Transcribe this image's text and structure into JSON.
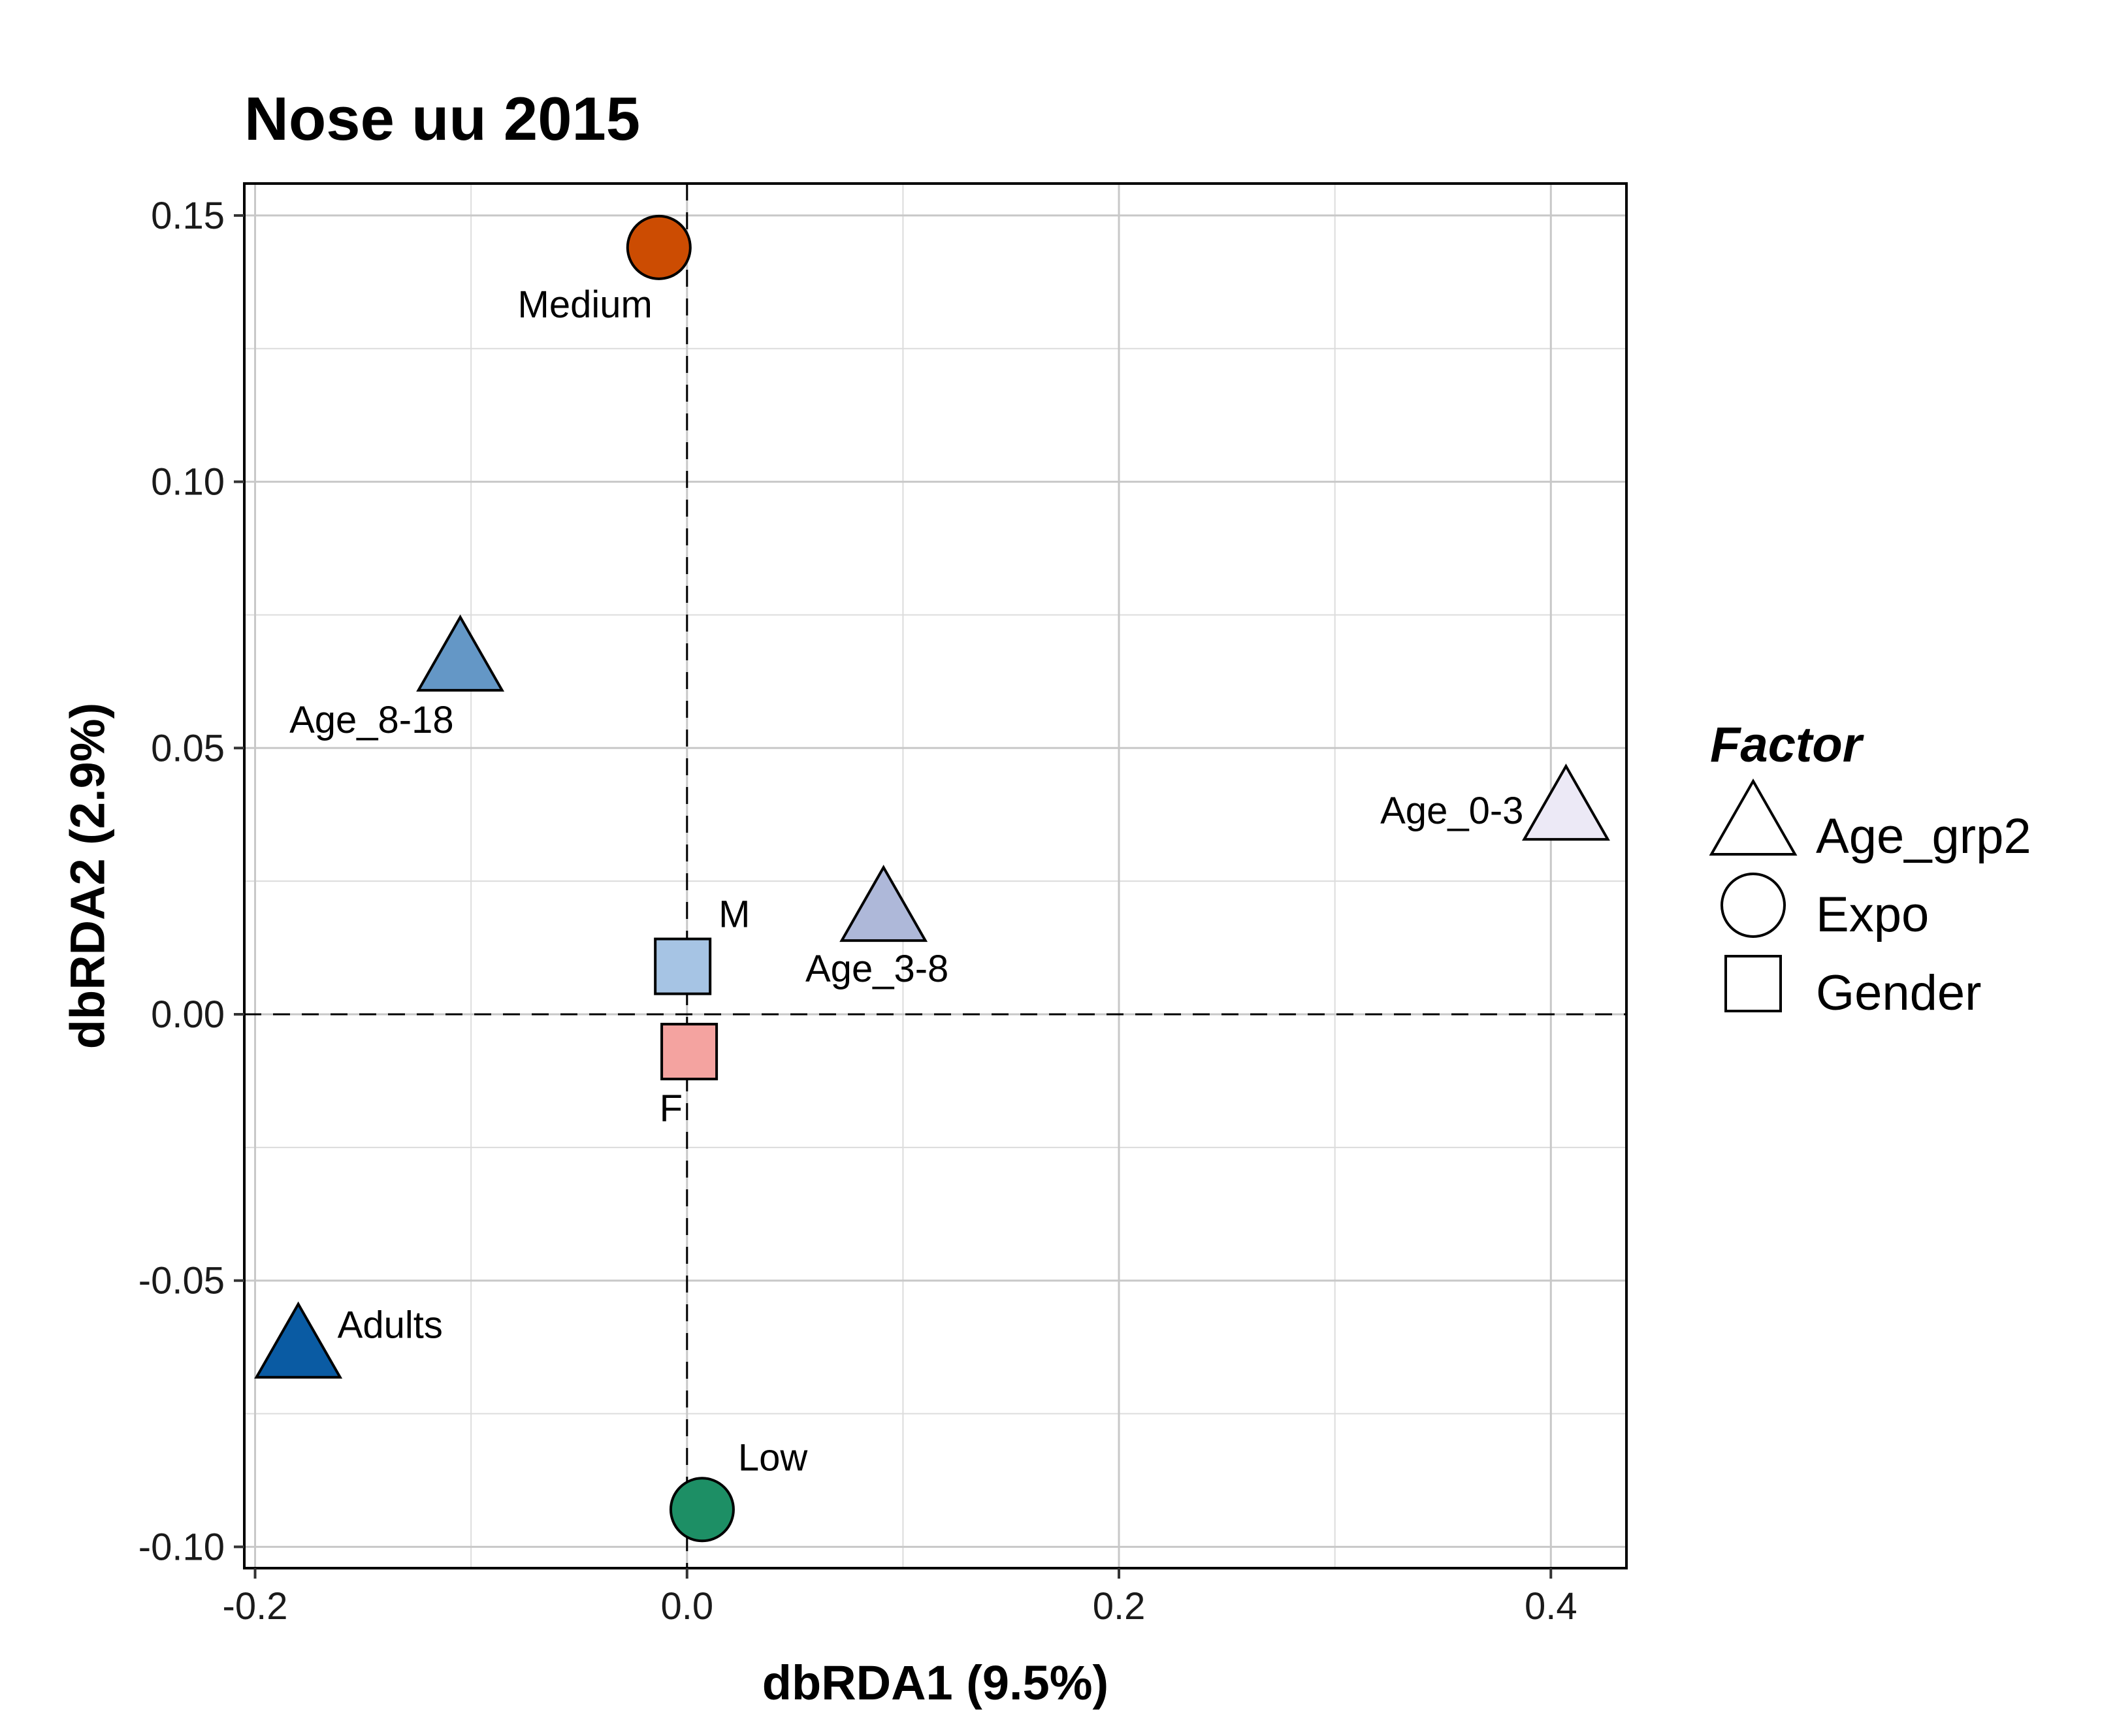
{
  "chart_data": {
    "type": "scatter",
    "title": "Nose uu 2015",
    "xlabel": "dbRDA1 (9.5%)",
    "ylabel": "dbRDA2 (2.9%)",
    "xlim": [
      -0.205,
      0.435
    ],
    "ylim": [
      -0.104,
      0.156
    ],
    "xticks": [
      -0.2,
      0.0,
      0.2,
      0.4
    ],
    "xtick_labels": [
      "-0.2",
      "0.0",
      "0.2",
      "0.4"
    ],
    "yticks": [
      -0.1,
      -0.05,
      0.0,
      0.05,
      0.1,
      0.15
    ],
    "ytick_labels": [
      "-0.10",
      "-0.05",
      "0.00",
      "0.05",
      "0.10",
      "0.15"
    ],
    "grid": true,
    "reference_lines": {
      "x": 0,
      "y": 0,
      "style": "dashed"
    },
    "legend": {
      "title": "Factor",
      "position": "right",
      "entries": [
        {
          "label": "Age_grp2",
          "shape": "triangle"
        },
        {
          "label": "Expo",
          "shape": "circle"
        },
        {
          "label": "Gender",
          "shape": "square"
        }
      ]
    },
    "points": [
      {
        "label": "Medium",
        "factor": "Expo",
        "shape": "circle",
        "x": -0.013,
        "y": 0.144,
        "color": "#CC4C02",
        "label_pos": "below-left"
      },
      {
        "label": "Age_8-18",
        "factor": "Age_grp2",
        "shape": "triangle",
        "x": -0.105,
        "y": 0.066,
        "color": "#6497C6",
        "label_pos": "below-left"
      },
      {
        "label": "Age_0-3",
        "factor": "Age_grp2",
        "shape": "triangle",
        "x": 0.407,
        "y": 0.038,
        "color": "#ECE9F6",
        "label_pos": "left"
      },
      {
        "label": "Age_3-8",
        "factor": "Age_grp2",
        "shape": "triangle",
        "x": 0.091,
        "y": 0.019,
        "color": "#AEB8D9",
        "label_pos": "below"
      },
      {
        "label": "M",
        "factor": "Gender",
        "shape": "square",
        "x": -0.002,
        "y": 0.009,
        "color": "#A6C4E4",
        "label_pos": "above-right"
      },
      {
        "label": "F",
        "factor": "Gender",
        "shape": "square",
        "x": 0.001,
        "y": -0.007,
        "color": "#F4A3A0",
        "label_pos": "below-left"
      },
      {
        "label": "Adults",
        "factor": "Age_grp2",
        "shape": "triangle",
        "x": -0.18,
        "y": -0.063,
        "color": "#0A5BA3",
        "label_pos": "right"
      },
      {
        "label": "Low",
        "factor": "Expo",
        "shape": "circle",
        "x": 0.007,
        "y": -0.093,
        "color": "#1D8F65",
        "label_pos": "above-right"
      }
    ]
  }
}
